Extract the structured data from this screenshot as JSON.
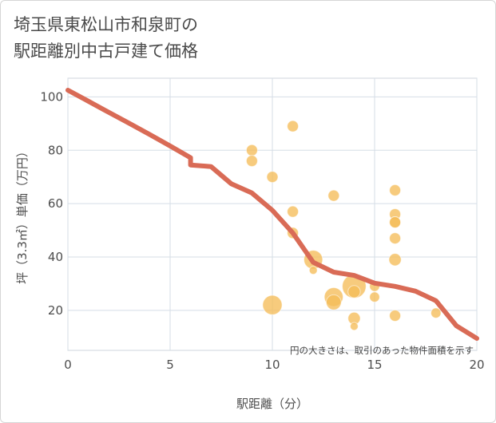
{
  "title_line1": "埼玉県東松山市和泉町の",
  "title_line2": "駅距離別中古戸建て価格",
  "chart_data": {
    "type": "scatter",
    "title": "埼玉県東松山市和泉町の駅距離別中古戸建て価格",
    "xlabel": "駅距離（分）",
    "ylabel": "坪（3.3㎡）単価（万円）",
    "xlim": [
      0,
      20
    ],
    "ylim": [
      5,
      107
    ],
    "xticks": [
      0,
      5,
      10,
      15,
      20
    ],
    "yticks": [
      20,
      40,
      60,
      80,
      100
    ],
    "grid": true,
    "note": "円の大きさは、取引のあった物件面積を示す",
    "colors": {
      "bubble": "#f5bd58",
      "line": "#d96b56",
      "grid": "#d5dde6",
      "plot_bg": "#ffffff"
    },
    "points": [
      {
        "x": 9,
        "y": 80,
        "size": 1
      },
      {
        "x": 9,
        "y": 76,
        "size": 1
      },
      {
        "x": 10,
        "y": 70,
        "size": 1
      },
      {
        "x": 10,
        "y": 22,
        "size": 3
      },
      {
        "x": 11,
        "y": 89,
        "size": 1
      },
      {
        "x": 11,
        "y": 57,
        "size": 1
      },
      {
        "x": 11,
        "y": 49,
        "size": 1
      },
      {
        "x": 12,
        "y": 39,
        "size": 2.8
      },
      {
        "x": 12,
        "y": 35,
        "size": 0.5
      },
      {
        "x": 13,
        "y": 63,
        "size": 1
      },
      {
        "x": 13,
        "y": 25,
        "size": 2.8
      },
      {
        "x": 13,
        "y": 23,
        "size": 1.8
      },
      {
        "x": 14,
        "y": 29,
        "size": 4.5
      },
      {
        "x": 14,
        "y": 27,
        "size": 1.2
      },
      {
        "x": 14,
        "y": 17,
        "size": 1.2
      },
      {
        "x": 14,
        "y": 14,
        "size": 0.5
      },
      {
        "x": 15,
        "y": 29,
        "size": 0.8
      },
      {
        "x": 15,
        "y": 25,
        "size": 0.8
      },
      {
        "x": 16,
        "y": 65,
        "size": 1
      },
      {
        "x": 16,
        "y": 56,
        "size": 1
      },
      {
        "x": 16,
        "y": 53,
        "size": 1
      },
      {
        "x": 16,
        "y": 53,
        "size": 1
      },
      {
        "x": 16,
        "y": 47,
        "size": 1
      },
      {
        "x": 16,
        "y": 39,
        "size": 1.2
      },
      {
        "x": 16,
        "y": 18,
        "size": 1
      },
      {
        "x": 18,
        "y": 19,
        "size": 0.8
      }
    ],
    "trend_line": [
      {
        "x": 0,
        "y": 102.5
      },
      {
        "x": 1,
        "y": 98.4
      },
      {
        "x": 2,
        "y": 94.2
      },
      {
        "x": 3,
        "y": 90.1
      },
      {
        "x": 4,
        "y": 85.9
      },
      {
        "x": 5,
        "y": 81.6
      },
      {
        "x": 6,
        "y": 77.2
      },
      {
        "x": 6,
        "y": 74.5
      },
      {
        "x": 7,
        "y": 73.9
      },
      {
        "x": 8,
        "y": 67.4
      },
      {
        "x": 9,
        "y": 64
      },
      {
        "x": 10,
        "y": 57.5
      },
      {
        "x": 11,
        "y": 49
      },
      {
        "x": 12,
        "y": 38
      },
      {
        "x": 13,
        "y": 34.3
      },
      {
        "x": 14,
        "y": 33.1
      },
      {
        "x": 15,
        "y": 30.2
      },
      {
        "x": 16,
        "y": 29
      },
      {
        "x": 17,
        "y": 27.2
      },
      {
        "x": 18,
        "y": 23.6
      },
      {
        "x": 19,
        "y": 14.2
      },
      {
        "x": 20,
        "y": 9.5
      }
    ]
  }
}
